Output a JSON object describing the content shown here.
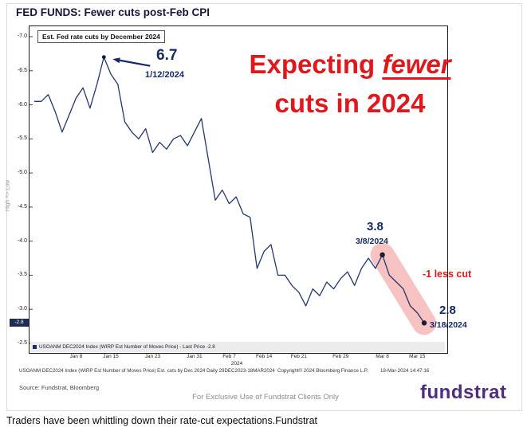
{
  "figure": {
    "title": "FED FUNDS: Fewer cuts post-Feb CPI",
    "source": "Source: Fundstrat, Bloomberg",
    "exclusive_note": "For Exclusive Use of Fundstrat Clients Only",
    "logo_text": "fundstrat",
    "caption": "Traders have been whittling down their rate-cut expectations.Fundstrat"
  },
  "chart": {
    "inner_title": "Est. Fed rate cuts by December 2024",
    "y_axis_label": "High => Low",
    "last_price_badge": "-2.8",
    "legend_text": "USOANM DEC2024 Index (WIRP Est Number of Moves Price) - Last Price -2.8",
    "footer_left": "USOANM DEC2024 Index (WIRP Est Number of Moves Price) Est. cuts by Dec 2024  Daily 29DEC2023-18MAR2024",
    "footer_center": "Copyright© 2024 Bloomberg Finance L.P.",
    "footer_right": "18-Mar-2024 14:47:16",
    "x_year_label": "2024"
  },
  "annotations": {
    "headline_pre": "Expecting ",
    "headline_emph": "fewer",
    "headline_line2": "cuts in 2024",
    "peak_value": "6.7",
    "peak_date": "1/12/2024",
    "mar8_value": "3.8",
    "mar8_date": "3/8/2024",
    "less_cut_label": "-1 less cut",
    "final_value": "2.8",
    "final_date": "3/18/2024"
  },
  "colors": {
    "line_navy": "#24366b",
    "annotation_navy": "#152a63",
    "headline_red": "#e0181d",
    "highlight_pink": "#f08f8f",
    "dot": "#1c1c2e",
    "logo_purple": "#4f2d7f",
    "badge_bg": "#1e2c55"
  },
  "chart_data": {
    "type": "line",
    "title": "Est. Fed rate cuts by December 2024",
    "series_name": "USOANM DEC2024 Index (WIRP Est Number of Moves Price)",
    "last_price": -2.8,
    "ylabel": "High => Low",
    "ylim": [
      -7.0,
      -2.5
    ],
    "y_ticks": [
      -7.0,
      -6.5,
      -6.0,
      -5.5,
      -5.0,
      -4.5,
      -4.0,
      -3.5,
      -3.0,
      -2.5
    ],
    "x_year": "2024",
    "x_dates": [
      "12/29",
      "1/1",
      "1/2",
      "1/3",
      "1/4",
      "1/5",
      "1/8",
      "1/9",
      "1/10",
      "1/11",
      "1/12",
      "1/15",
      "1/16",
      "1/17",
      "1/18",
      "1/19",
      "1/22",
      "1/23",
      "1/24",
      "1/25",
      "1/26",
      "1/29",
      "1/30",
      "1/31",
      "2/1",
      "2/2",
      "2/5",
      "2/6",
      "2/7",
      "2/8",
      "2/9",
      "2/12",
      "2/13",
      "2/14",
      "2/15",
      "2/16",
      "2/19",
      "2/20",
      "2/21",
      "2/22",
      "2/23",
      "2/26",
      "2/27",
      "2/28",
      "2/29",
      "3/1",
      "3/4",
      "3/5",
      "3/6",
      "3/7",
      "3/8",
      "3/11",
      "3/12",
      "3/13",
      "3/14",
      "3/15",
      "3/18"
    ],
    "values": [
      -6.05,
      -6.05,
      -6.15,
      -5.9,
      -5.6,
      -5.85,
      -6.1,
      -6.25,
      -5.95,
      -6.3,
      -6.7,
      -6.45,
      -6.3,
      -5.75,
      -5.6,
      -5.5,
      -5.65,
      -5.3,
      -5.45,
      -5.35,
      -5.5,
      -5.55,
      -5.4,
      -5.6,
      -5.8,
      -5.2,
      -4.6,
      -4.75,
      -4.55,
      -4.65,
      -4.4,
      -4.35,
      -3.6,
      -3.85,
      -3.95,
      -3.5,
      -3.5,
      -3.35,
      -3.25,
      -3.05,
      -3.3,
      -3.2,
      -3.4,
      -3.3,
      -3.45,
      -3.55,
      -3.35,
      -3.6,
      -3.75,
      -3.6,
      -3.8,
      -3.5,
      -3.4,
      -3.3,
      -3.05,
      -2.95,
      -2.8
    ],
    "x_ticks": [
      {
        "label": "Jan 8",
        "index": 6
      },
      {
        "label": "Jan 15",
        "index": 11
      },
      {
        "label": "Jan 23",
        "index": 17
      },
      {
        "label": "Jan 31",
        "index": 23
      },
      {
        "label": "Feb 7",
        "index": 28
      },
      {
        "label": "Feb 14",
        "index": 33
      },
      {
        "label": "Feb 21",
        "index": 38
      },
      {
        "label": "Feb 29",
        "index": 44
      },
      {
        "label": "Mar 8",
        "index": 50
      },
      {
        "label": "Mar 15",
        "index": 55
      }
    ],
    "dot_indices": [
      10,
      50,
      56
    ],
    "highlight": {
      "from_index": 50,
      "to_index": 56,
      "label": "-1 less cut"
    },
    "annotated_points": [
      {
        "index": 10,
        "value": 6.7,
        "date": "1/12/2024"
      },
      {
        "index": 50,
        "value": 3.8,
        "date": "3/8/2024"
      },
      {
        "index": 56,
        "value": 2.8,
        "date": "3/18/2024"
      }
    ]
  }
}
